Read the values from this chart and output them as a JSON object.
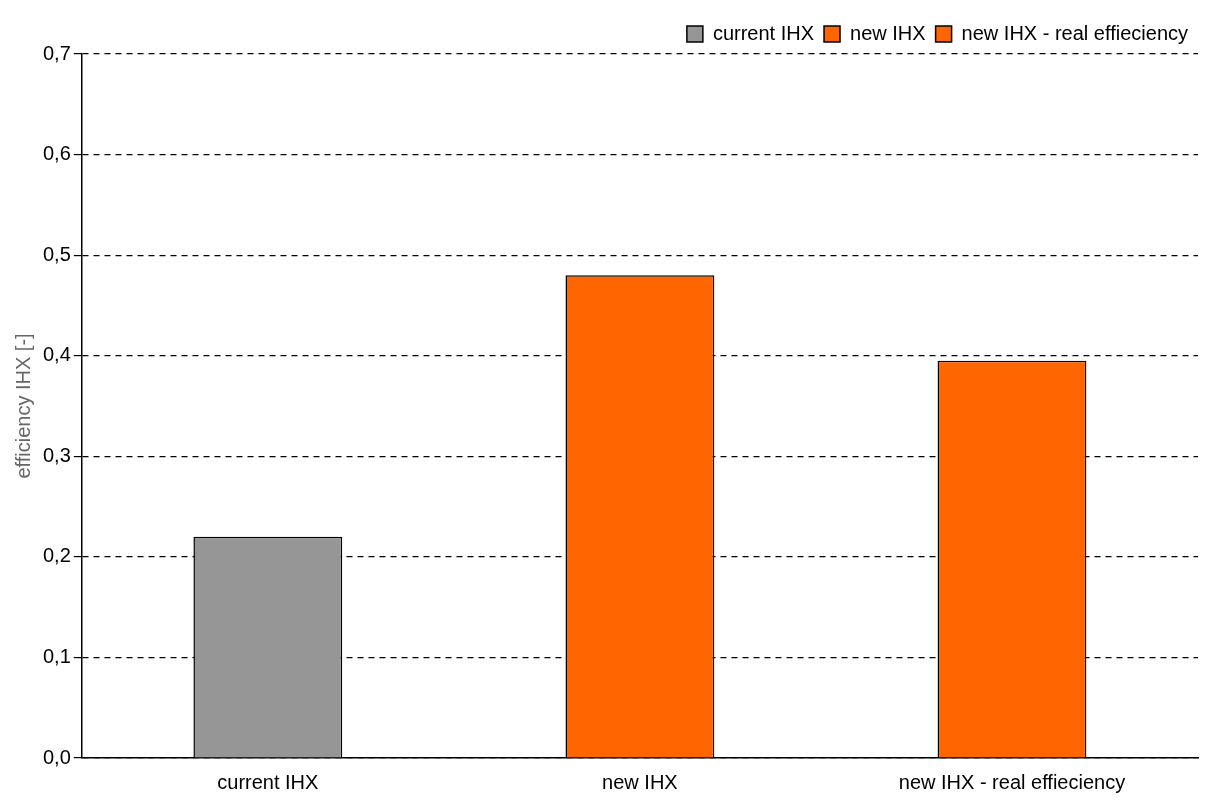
{
  "chart_data": {
    "type": "bar",
    "ylabel": "efficiency IHX [-]",
    "categories": [
      "current IHX",
      "new IHX",
      "new IHX - real effieciency"
    ],
    "series": [
      {
        "name": "current IHX",
        "color": "#969696",
        "values": [
          0.22,
          null,
          null
        ]
      },
      {
        "name": "new IHX",
        "color": "#ff6600",
        "values": [
          null,
          0.48,
          null
        ]
      },
      {
        "name": "new IHX - real effieciency",
        "color": "#ff6600",
        "values": [
          null,
          null,
          0.395
        ]
      }
    ],
    "ylim": [
      0,
      0.7
    ],
    "yticks": [
      {
        "value": 0,
        "label": "0,0"
      },
      {
        "value": 0.1,
        "label": "0,1"
      },
      {
        "value": 0.2,
        "label": "0,2"
      },
      {
        "value": 0.3,
        "label": "0,3"
      },
      {
        "value": 0.4,
        "label": "0,4"
      },
      {
        "value": 0.5,
        "label": "0,5"
      },
      {
        "value": 0.6,
        "label": "0,6"
      },
      {
        "value": 0.7,
        "label": "0,7"
      }
    ],
    "grid": "y",
    "legend": "top right"
  }
}
